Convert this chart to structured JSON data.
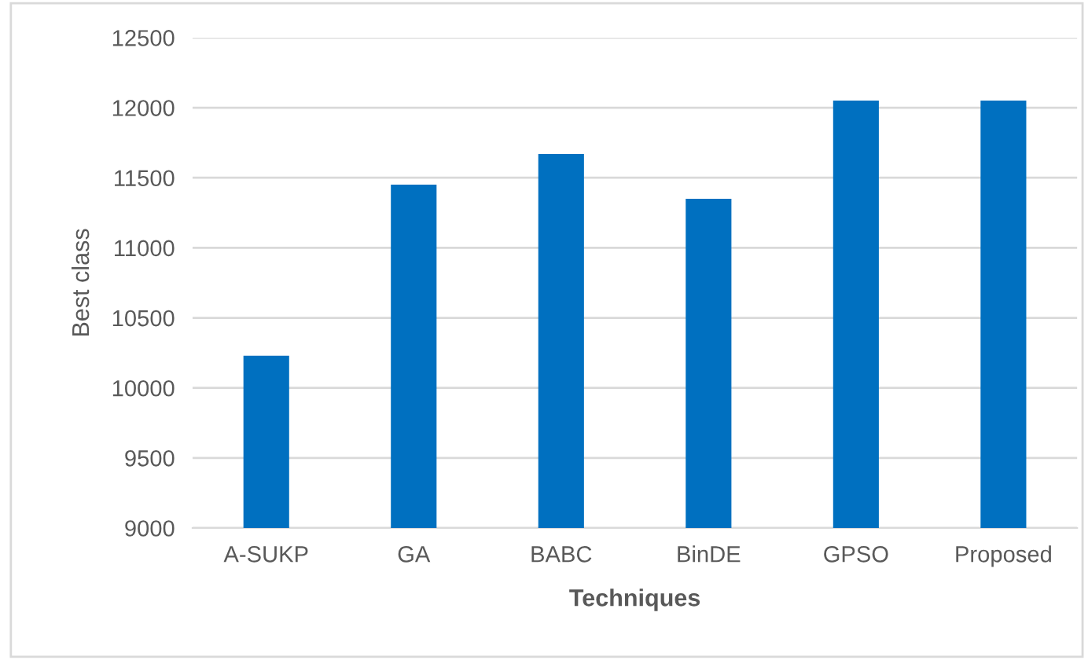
{
  "chart_data": {
    "type": "bar",
    "xlabel": "Techniques",
    "ylabel": "Best class",
    "categories": [
      "A-SUKP",
      "GA",
      "BABC",
      "BinDE",
      "GPSO",
      "Proposed"
    ],
    "values": [
      10230,
      11450,
      11670,
      11350,
      12050,
      12050
    ],
    "color": "#0070c0",
    "ylim": [
      9000,
      12500
    ],
    "yticks": [
      9000,
      9500,
      10000,
      10500,
      11000,
      11500,
      12000,
      12500
    ],
    "grid": "y",
    "legend": false
  }
}
